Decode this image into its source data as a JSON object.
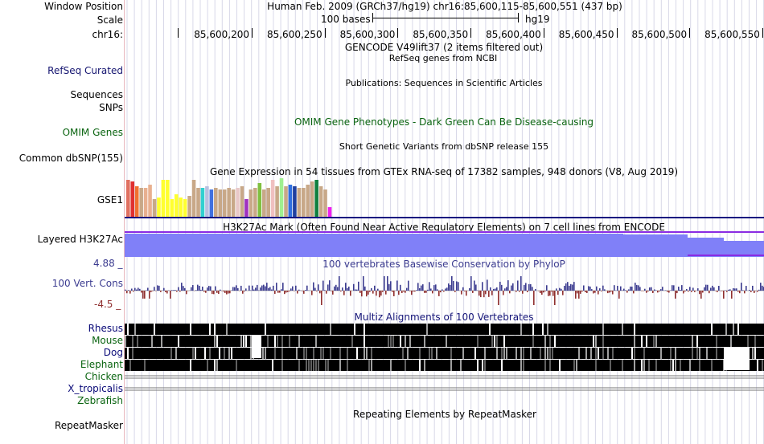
{
  "header": {
    "window_position_label": "Window Position",
    "window_position_value": "Human Feb. 2009 (GRCh37/hg19)   chr16:85,600,115-85,600,551 (437 bp)",
    "scale_label": "Scale",
    "scale_text": "100 bases",
    "scale_assembly": "hg19",
    "chrom_label": "chr16:",
    "coords": [
      "85,600,200",
      "85,600,250",
      "85,600,300",
      "85,600,350",
      "85,600,400",
      "85,600,450",
      "85,600,500",
      "85,600,550"
    ]
  },
  "tracks": {
    "gencode_title": "GENCODE V49lift37 (2 items filtered out)",
    "refseq_label": "RefSeq Curated",
    "refseq_title": "RefSeq genes from NCBI",
    "publications_title": "Publications: Sequences in Scientific Articles",
    "sequences_label": "Sequences",
    "snps_label": "SNPs",
    "omim_label": "OMIM Genes",
    "omim_title": "OMIM Gene Phenotypes - Dark Green Can Be Disease-causing",
    "dbsnp_label": "Common dbSNP(155)",
    "dbsnp_title": "Short Genetic Variants from dbSNP release 155",
    "gtex_title": "Gene Expression in 54 tissues from GTEx RNA-seq of 17382 samples, 948 donors (V8, Aug 2019)",
    "gse1_label": "GSE1",
    "h3k27ac_label": "Layered H3K27Ac",
    "h3k27ac_title": "H3K27Ac Mark (Often Found Near Active Regulatory Elements) on 7 cell lines from ENCODE",
    "cons_label": "100 Vert. Cons",
    "cons_title": "100 vertebrates Basewise Conservation by PhyloP",
    "cons_max": "4.88 _",
    "cons_min": "-4.5 _",
    "multiz_title": "Multiz Alignments of 100 Vertebrates",
    "species": [
      {
        "name": "Rhesus",
        "color": "#0a0a78"
      },
      {
        "name": "Mouse",
        "color": "#0a6410"
      },
      {
        "name": "Dog",
        "color": "#0a0a78"
      },
      {
        "name": "Elephant",
        "color": "#0a6410"
      },
      {
        "name": "Chicken",
        "color": "#0a6410"
      },
      {
        "name": "X_tropicalis",
        "color": "#0a0a78"
      },
      {
        "name": "Zebrafish",
        "color": "#0a6410"
      }
    ],
    "repeatmasker_label": "RepeatMasker",
    "repeatmasker_title": "Repeating Elements by RepeatMasker"
  },
  "colors": {
    "refseq": "#141470",
    "omim": "#0a6410",
    "cons_positive": "#3c3c90",
    "cons_negative": "#903030",
    "h3k27ac": "#8080f8",
    "track_border": "#141480",
    "grid": "#d8d8e8"
  },
  "gtex_colors": [
    "#e07060",
    "#e03030",
    "#f07030",
    "#c8a888",
    "#e8b090",
    "#e8b090",
    "#c8a888",
    "#ffff30",
    "#ffff30",
    "#ffff30",
    "#ffff30",
    "#ffff30",
    "#ffff30",
    "#ffff30",
    "#c8a888",
    "#c8a888",
    "#c8a888",
    "#30d0d0",
    "#b8c0e0",
    "#4070e0",
    "#c8a888",
    "#c8a888",
    "#c8a888",
    "#c8a888",
    "#c8a888",
    "#e8c8c8",
    "#c8a888",
    "#a030c0",
    "#c8a888",
    "#c8a888",
    "#80c040",
    "#c8a888",
    "#c8a888",
    "#f0c0c0",
    "#c8a888",
    "#a0f090",
    "#c8a888",
    "#3070e0",
    "#2040a0",
    "#c8a888",
    "#c8a888",
    "#c8a888",
    "#c8a888",
    "#108040",
    "#c8a888",
    "#c8a888",
    "#f020f0"
  ]
}
